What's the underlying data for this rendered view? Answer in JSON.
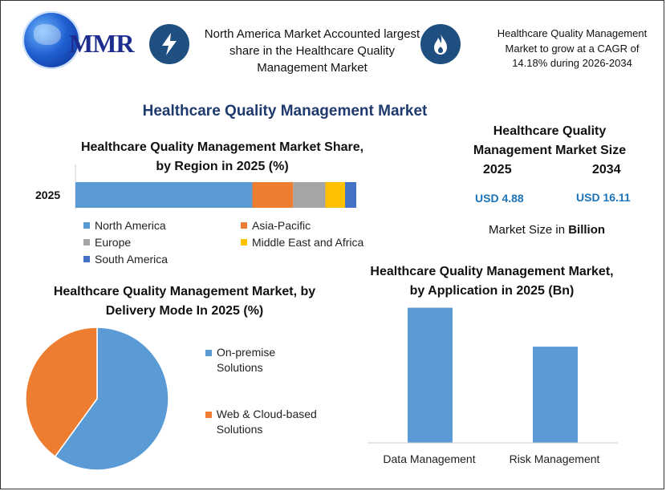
{
  "header": {
    "logo_text": "MMR",
    "blurb_left": "North America Market Accounted largest share in the Healthcare Quality Management Market",
    "blurb_right": "Healthcare Quality Management Market to grow at a CAGR of 14.18% during 2026-2034",
    "icon_left": "lightning-bolt-icon",
    "icon_right": "flame-icon"
  },
  "main_title": "Healthcare Quality Management Market",
  "market_size": {
    "title": "Healthcare Quality Management Market Size",
    "year_a": "2025",
    "year_b": "2034",
    "value_a": "USD 4.88",
    "value_b": "USD 16.11",
    "note_prefix": "Market Size in ",
    "note_bold": "Billion"
  },
  "colors": {
    "north_america": "#5b9bd5",
    "asia_pacific": "#ed7d31",
    "europe": "#a5a5a5",
    "mea": "#ffc000",
    "south_america": "#4472c4",
    "title_blue": "#1e3a6e",
    "value_blue": "#1c73b8",
    "icon_bg": "#1e4f80"
  },
  "chart_data": [
    {
      "type": "bar",
      "orientation": "horizontal-stacked",
      "title": "Healthcare Quality Management Market Share, by Region in 2025 (%)",
      "categories": [
        "2025"
      ],
      "series": [
        {
          "name": "North America",
          "values": [
            63
          ]
        },
        {
          "name": "Asia-Pacific",
          "values": [
            14.5
          ]
        },
        {
          "name": "Europe",
          "values": [
            11.5
          ]
        },
        {
          "name": "Middle East and Africa",
          "values": [
            7
          ]
        },
        {
          "name": "South America",
          "values": [
            4
          ]
        }
      ],
      "legend": "bottom",
      "legend_labels": [
        "North America",
        "Asia-Pacific",
        "Europe",
        "Middle East and Africa",
        "South America"
      ],
      "xlim": [
        0,
        100
      ]
    },
    {
      "type": "pie",
      "title": "Healthcare Quality Management Market, by Delivery Mode In 2025 (%)",
      "categories": [
        "On-premise Solutions",
        "Web & Cloud-based Solutions"
      ],
      "values": [
        60,
        40
      ],
      "legend": "right"
    },
    {
      "type": "bar",
      "title": "Healthcare Quality Management Market, by Application in 2025 (Bn)",
      "categories": [
        "Data Management",
        "Risk Management"
      ],
      "values": [
        2.95,
        2.1
      ],
      "ylim": [
        0,
        3.1
      ]
    }
  ]
}
